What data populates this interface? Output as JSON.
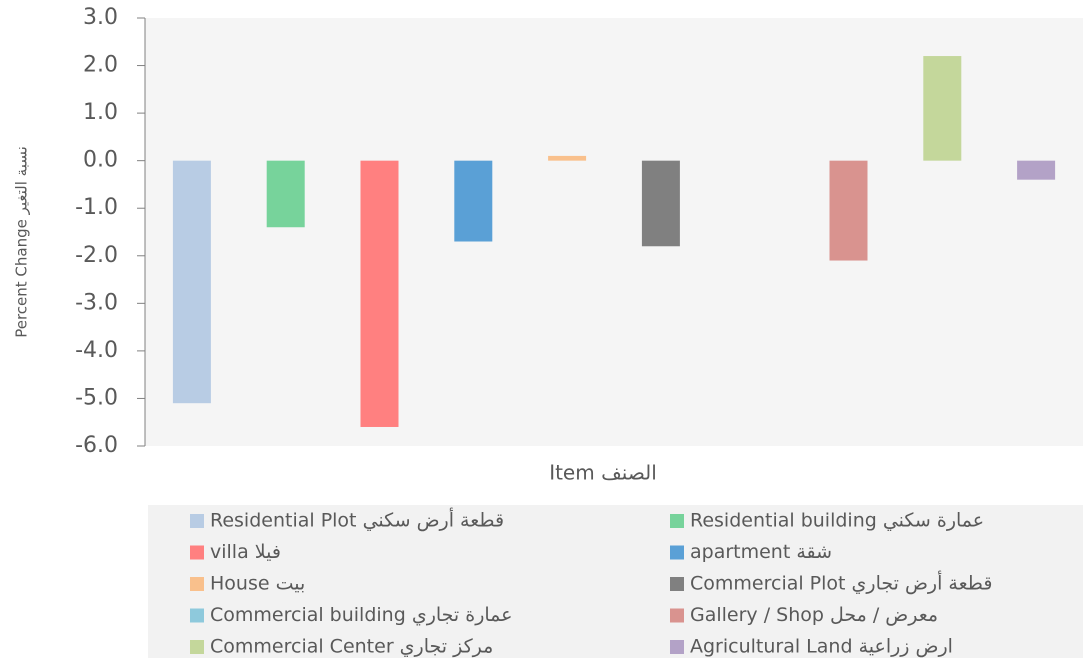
{
  "chart_data": {
    "type": "bar",
    "y_label": "Percent Change نسبة التغير",
    "x_label": "Item الصنف",
    "categories": [
      "Residential Plot قطعة أرض سكني",
      "Residential building عمارة سكني",
      "villa فيلا",
      "apartment شقة",
      "House بيت",
      "Commercial Plot قطعة أرض تجاري",
      "Commercial building عمارة تجاري",
      "Gallery / Shop معرض / محل",
      "Commercial Center مركز تجاري",
      "Agricultural Land ارض زراعية"
    ],
    "values": [
      -5.1,
      -1.4,
      -5.6,
      -1.7,
      0.1,
      -1.8,
      0,
      -2.1,
      2.2,
      -0.4
    ],
    "colors": [
      "#b8cce4",
      "#77d39b",
      "#ff8080",
      "#5aa0d6",
      "#f9c08c",
      "#808080",
      "#8ec9dc",
      "#d9938f",
      "#c4d79b",
      "#b3a2c7"
    ],
    "ylim": [
      -6,
      3
    ],
    "yticks": [
      {
        "value": 3,
        "label": "3.0"
      },
      {
        "value": 2,
        "label": "2.0"
      },
      {
        "value": 1,
        "label": "1.0"
      },
      {
        "value": 0,
        "label": "0.0"
      },
      {
        "value": -1,
        "label": "-1.0"
      },
      {
        "value": -2,
        "label": "-2.0"
      },
      {
        "value": -3,
        "label": "-3.0"
      },
      {
        "value": -4,
        "label": "-4.0"
      },
      {
        "value": -5,
        "label": "-5.0"
      },
      {
        "value": -6,
        "label": "-6.0"
      }
    ],
    "legend": "bottom"
  }
}
